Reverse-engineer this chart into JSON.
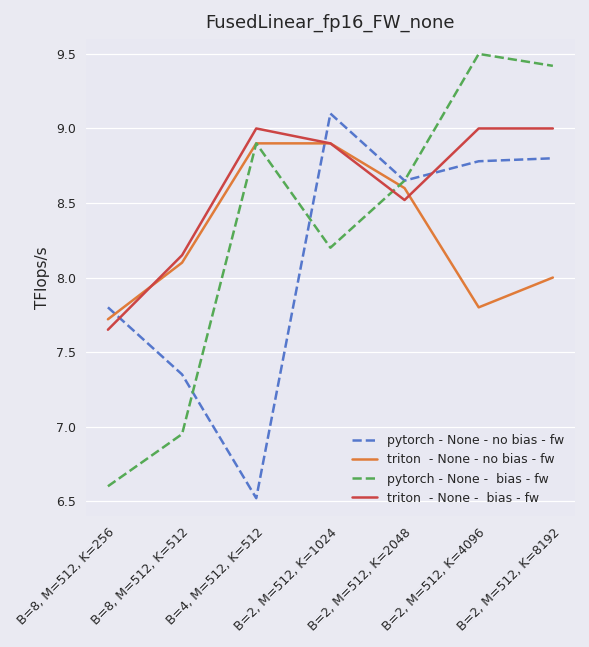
{
  "title": "FusedLinear_fp16_FW_none",
  "ylabel": "TFlops/s",
  "x_labels": [
    "B=8, M=512, K=256",
    "B=8, M=512, K=512",
    "B=4, M=512, K=512",
    "B=2, M=512, K=1024",
    "B=2, M=512, K=2048",
    "B=2, M=512, K=4096",
    "B=2, M=512, K=8192"
  ],
  "ylim": [
    6.4,
    9.6
  ],
  "series": [
    {
      "label": "pytorch - None - no bias - fw",
      "color": "#5577cc",
      "linestyle": "--",
      "values": [
        7.8,
        7.35,
        6.52,
        9.1,
        8.65,
        8.78,
        8.8
      ]
    },
    {
      "label": "triton  - None - no bias - fw",
      "color": "#e07b39",
      "linestyle": "-",
      "values": [
        7.72,
        8.1,
        8.9,
        8.9,
        8.6,
        7.8,
        8.0
      ]
    },
    {
      "label": "pytorch - None -  bias - fw",
      "color": "#55aa55",
      "linestyle": "--",
      "values": [
        6.6,
        6.95,
        8.9,
        8.2,
        8.65,
        9.5,
        9.42
      ]
    },
    {
      "label": "triton  - None -  bias - fw",
      "color": "#cc4444",
      "linestyle": "-",
      "values": [
        7.65,
        8.15,
        9.0,
        8.9,
        8.52,
        9.0,
        9.0
      ]
    }
  ],
  "plot_bg": "#e8e8f2",
  "fig_bg": "#eaeaf2",
  "title_fontsize": 13,
  "axis_label_fontsize": 11,
  "tick_fontsize": 9,
  "legend_fontsize": 9
}
